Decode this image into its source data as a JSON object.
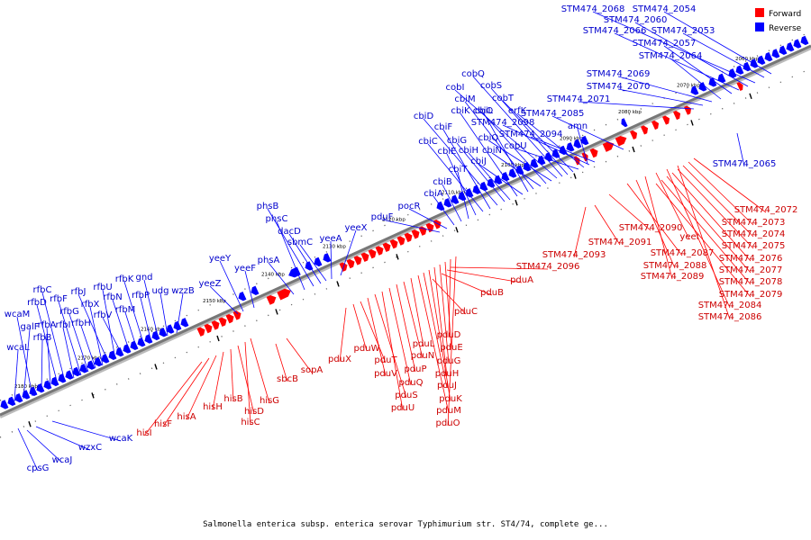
{
  "caption": "Salmonella enterica subsp. enterica serovar Typhimurium str. ST4/74, complete ge...",
  "legend": [
    {
      "label": "Forward",
      "color": "#ff0000"
    },
    {
      "label": "Reverse",
      "color": "#0000ff"
    }
  ],
  "colors": {
    "forward": "#ff0000",
    "forward_label": "#cc0000",
    "reverse": "#0000ff",
    "reverse_label": "#0000cc",
    "backbone": "#777777"
  },
  "ticks": [
    "2180 kbp",
    "2170 kbp",
    "2160 kbp",
    "2150 kbp",
    "2140 kbp",
    "2130 kbp",
    "2120 kbp",
    "2110 kbp",
    "2100 kbp",
    "2090 kbp",
    "2080 kbp",
    "2070 kbp",
    "2060 kbp"
  ],
  "reverse_labels": [
    "cpsG",
    "wcaJ",
    "wzxC",
    "wcaK",
    "wcaL",
    "galF",
    "wcaM",
    "rfbB",
    "rfbA",
    "rfbD",
    "rfbC",
    "rfbI",
    "rfbF",
    "rfbG",
    "rfbH",
    "rfbX",
    "rfbJ",
    "rfbU",
    "rfbV",
    "rfbN",
    "rfbM",
    "rfbK",
    "rfbP",
    "gnd",
    "udg",
    "wzzB",
    "yeeZ",
    "yeeY",
    "yeeF",
    "phsA",
    "phsC",
    "phsB",
    "dacD",
    "sbmC",
    "yeeA",
    "yeeX",
    "pduF",
    "pocR",
    "cbiA",
    "cbiB",
    "cbiT",
    "cbiE",
    "cbiC",
    "cbiF",
    "cbiD",
    "cbiG",
    "cbiH",
    "cbiK",
    "cbiJ",
    "cbiL",
    "cbiM",
    "cbiN",
    "cbiO",
    "cbiQ",
    "cobI",
    "cobQ",
    "cobS",
    "cobT",
    "cobU",
    "erfK",
    "STM474_2098",
    "STM474_2094",
    "amn",
    "STM474_2085",
    "STM474_2071",
    "STM474_2070",
    "STM474_2069",
    "STM474_2064",
    "STM474_2057",
    "STM474_2066",
    "STM474_2060",
    "STM474_2068",
    "STM474_2053",
    "STM474_2054",
    "STM474_2065"
  ],
  "forward_labels": [
    "hisI",
    "hisF",
    "hisA",
    "hisH",
    "hisB",
    "hisD",
    "hisC",
    "hisG",
    "sbcB",
    "sopA",
    "pduX",
    "pduW",
    "pduT",
    "pduV",
    "pduS",
    "pduU",
    "pduQ",
    "pduP",
    "pduN",
    "pduL",
    "pduM",
    "pduJ",
    "pduK",
    "pduH",
    "pduG",
    "pduE",
    "pduD",
    "pduO",
    "pduC",
    "pduB",
    "pduA",
    "STM474_2096",
    "STM474_2093",
    "STM474_2091",
    "STM474_2090",
    "STM474_2087",
    "STM474_2088",
    "STM474_2089",
    "STM474_2084",
    "STM474_2086",
    "yeeI",
    "STM474_2072",
    "STM474_2073",
    "STM474_2074",
    "STM474_2075",
    "STM474_2076",
    "STM474_2077",
    "STM474_2078",
    "STM474_2079"
  ]
}
